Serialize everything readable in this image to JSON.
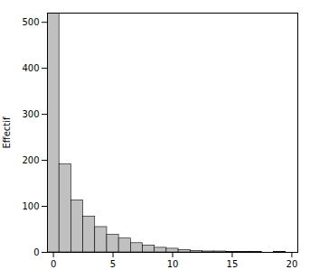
{
  "chart_data": {
    "type": "bar",
    "x": [
      0,
      1,
      2,
      3,
      4,
      5,
      6,
      7,
      8,
      9,
      10,
      11,
      12,
      13,
      14,
      15,
      16,
      17,
      18,
      19,
      20
    ],
    "values": [
      519,
      191,
      113,
      78,
      55,
      38,
      30,
      20,
      15,
      10,
      8,
      5,
      3,
      2,
      2,
      1,
      1,
      1,
      0,
      1,
      0
    ],
    "color": "#c0c0c0",
    "ylabel": "Effectif",
    "xlim": [
      -0.5,
      20.5
    ],
    "xticks": [
      0,
      5,
      10,
      15,
      20
    ],
    "ylim": [
      0,
      520
    ],
    "yticks": [
      0,
      100,
      200,
      300,
      400,
      500
    ],
    "grid": false
  }
}
